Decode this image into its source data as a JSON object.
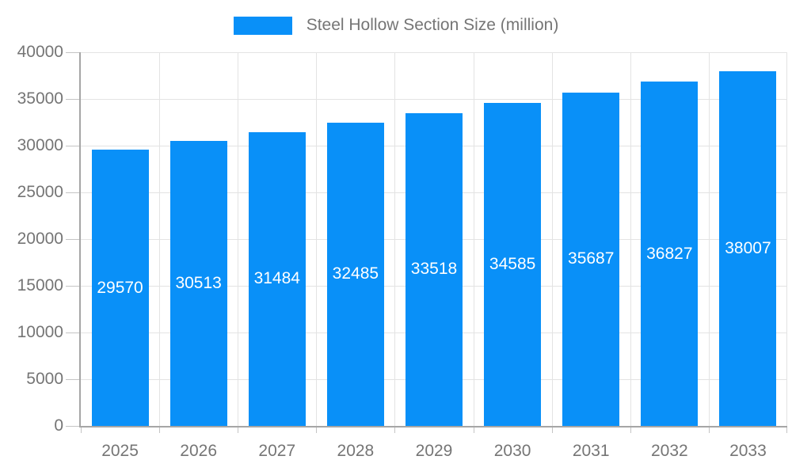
{
  "legend": {
    "label": "Steel Hollow Section Size (million)"
  },
  "colors": {
    "bar": "#0990f8",
    "grid": "#e3e3e3",
    "axis": "#a6a6a6",
    "tick": "#c4c4c4",
    "tick_text": "#757575",
    "bar_label_text": "#ffffff",
    "background": "#ffffff"
  },
  "chart_data": {
    "type": "bar",
    "title": "Steel Hollow Section Size (million)",
    "categories": [
      "2025",
      "2026",
      "2027",
      "2028",
      "2029",
      "2030",
      "2031",
      "2032",
      "2033"
    ],
    "values": [
      29570,
      30513,
      31484,
      32485,
      33518,
      34585,
      35687,
      36827,
      38007
    ],
    "xlabel": "",
    "ylabel": "",
    "ylim": [
      0,
      40000
    ],
    "yticks": [
      0,
      5000,
      10000,
      15000,
      20000,
      25000,
      30000,
      35000,
      40000
    ],
    "grid": true,
    "legend_position": "top",
    "bar_labels": "centered-inside-white"
  }
}
